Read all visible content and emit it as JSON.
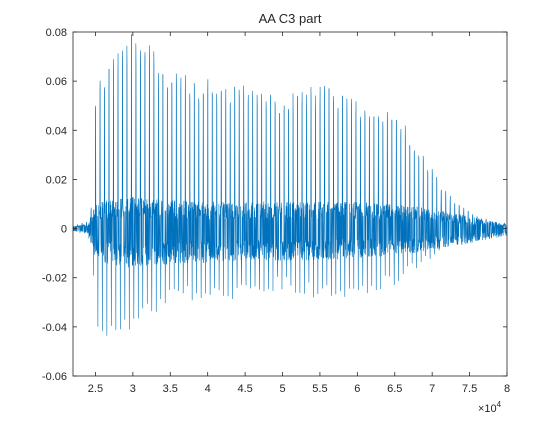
{
  "chart_data": {
    "type": "line",
    "title": "AA C3 part",
    "xlabel": "",
    "ylabel": "",
    "xlim": [
      22000,
      80000
    ],
    "ylim": [
      -0.06,
      0.08
    ],
    "x_exponent_label": "×10",
    "x_exponent_power": "4",
    "x_ticks": [
      25000,
      30000,
      35000,
      40000,
      45000,
      50000,
      55000,
      60000,
      65000,
      70000,
      75000,
      80000
    ],
    "x_tick_labels": [
      "2.5",
      "3",
      "3.5",
      "4",
      "4.5",
      "5",
      "5.5",
      "6",
      "6.5",
      "7",
      "7.5",
      "8"
    ],
    "y_ticks": [
      -0.06,
      -0.04,
      -0.02,
      0,
      0.02,
      0.04,
      0.06,
      0.08
    ],
    "y_tick_labels": [
      "-0.06",
      "-0.04",
      "-0.02",
      "0",
      "0.02",
      "0.04",
      "0.06",
      "0.08"
    ],
    "grid": false,
    "line_color": "#0072BD",
    "series": [
      {
        "envelope": {
          "x": [
            22000,
            24000,
            24500,
            25000,
            26000,
            27500,
            28500,
            30000,
            31500,
            32500,
            34000,
            36000,
            38000,
            40000,
            42000,
            44000,
            46000,
            48000,
            50000,
            52000,
            54000,
            55500,
            57000,
            58500,
            60000,
            62000,
            64000,
            65500,
            67000,
            69000,
            70500,
            72000,
            74000,
            76000,
            78000,
            80000
          ],
          "upper": [
            0.001,
            0.003,
            0.01,
            0.05,
            0.068,
            0.072,
            0.075,
            0.08,
            0.076,
            0.077,
            0.063,
            0.065,
            0.062,
            0.062,
            0.06,
            0.058,
            0.06,
            0.056,
            0.055,
            0.056,
            0.058,
            0.059,
            0.057,
            0.054,
            0.052,
            0.048,
            0.05,
            0.047,
            0.039,
            0.029,
            0.022,
            0.015,
            0.009,
            0.005,
            0.003,
            0.002
          ],
          "lower": [
            -0.001,
            -0.003,
            -0.01,
            -0.035,
            -0.053,
            -0.048,
            -0.045,
            -0.044,
            -0.043,
            -0.036,
            -0.034,
            -0.031,
            -0.03,
            -0.029,
            -0.03,
            -0.028,
            -0.027,
            -0.026,
            -0.026,
            -0.027,
            -0.029,
            -0.03,
            -0.029,
            -0.028,
            -0.029,
            -0.027,
            -0.025,
            -0.023,
            -0.019,
            -0.014,
            -0.011,
            -0.008,
            -0.006,
            -0.004,
            -0.002,
            -0.002
          ]
        },
        "dense_band": {
          "x": [
            22000,
            24000,
            25000,
            27000,
            30000,
            35000,
            40000,
            45000,
            50000,
            55000,
            60000,
            65000,
            70000,
            75000,
            78000,
            80000
          ],
          "upper": [
            0.001,
            0.002,
            0.01,
            0.012,
            0.013,
            0.012,
            0.011,
            0.011,
            0.011,
            0.011,
            0.011,
            0.01,
            0.008,
            0.005,
            0.003,
            0.002
          ],
          "lower": [
            -0.001,
            -0.002,
            -0.012,
            -0.015,
            -0.016,
            -0.015,
            -0.014,
            -0.013,
            -0.013,
            -0.013,
            -0.012,
            -0.011,
            -0.009,
            -0.006,
            -0.004,
            -0.003
          ]
        },
        "fundamental_period": 600
      }
    ]
  }
}
